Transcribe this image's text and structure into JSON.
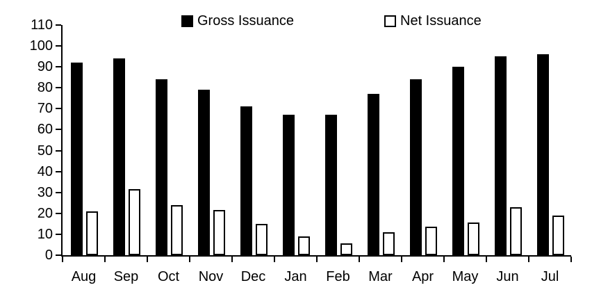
{
  "chart_data": {
    "type": "bar",
    "title": "",
    "xlabel": "",
    "ylabel": "",
    "categories": [
      "Aug",
      "Sep",
      "Oct",
      "Nov",
      "Dec",
      "Jan",
      "Feb",
      "Mar",
      "Apr",
      "May",
      "Jun",
      "Jul"
    ],
    "series": [
      {
        "name": "Gross Issuance",
        "values": [
          92,
          94,
          84,
          79,
          71,
          67,
          67,
          77,
          84,
          90,
          95,
          96
        ],
        "fill": "#000000",
        "border": "#000000"
      },
      {
        "name": "Net Issuance",
        "values": [
          21,
          31.5,
          24,
          21.5,
          15,
          9,
          5.5,
          11,
          13.5,
          15.5,
          23,
          19
        ],
        "fill": "#ffffff",
        "border": "#000000"
      }
    ],
    "ylim": [
      0,
      110
    ],
    "yticks": [
      0,
      10,
      20,
      30,
      40,
      50,
      60,
      70,
      80,
      90,
      100,
      110
    ],
    "grid": false,
    "legend_position": "top"
  },
  "legend": {
    "gross_label": "Gross Issuance",
    "net_label": "Net Issuance"
  },
  "colors": {
    "bar_fill": "#000000",
    "net_fill": "#ffffff",
    "axis": "#000000",
    "text": "#000000",
    "background": "#ffffff"
  }
}
